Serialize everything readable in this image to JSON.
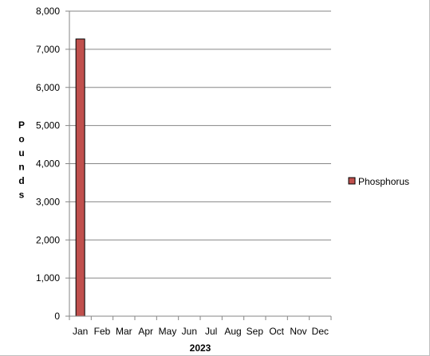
{
  "chart_data": {
    "type": "bar",
    "categories": [
      "Jan",
      "Feb",
      "Mar",
      "Apr",
      "May",
      "Jun",
      "Jul",
      "Aug",
      "Sep",
      "Oct",
      "Nov",
      "Dec"
    ],
    "series": [
      {
        "name": "Phosphorus",
        "values": [
          7270,
          null,
          null,
          null,
          null,
          null,
          null,
          null,
          null,
          null,
          null,
          null
        ],
        "color": "#c0504d"
      }
    ],
    "title": "",
    "xlabel": "2023",
    "ylabel": "Pounds",
    "ylim": [
      0,
      8000
    ],
    "yticks": [
      0,
      1000,
      2000,
      3000,
      4000,
      5000,
      6000,
      7000,
      8000
    ],
    "ytick_labels": [
      "0",
      "1,000",
      "2,000",
      "3,000",
      "4,000",
      "5,000",
      "6,000",
      "7,000",
      "8,000"
    ],
    "grid": true,
    "legend_position": "right"
  }
}
